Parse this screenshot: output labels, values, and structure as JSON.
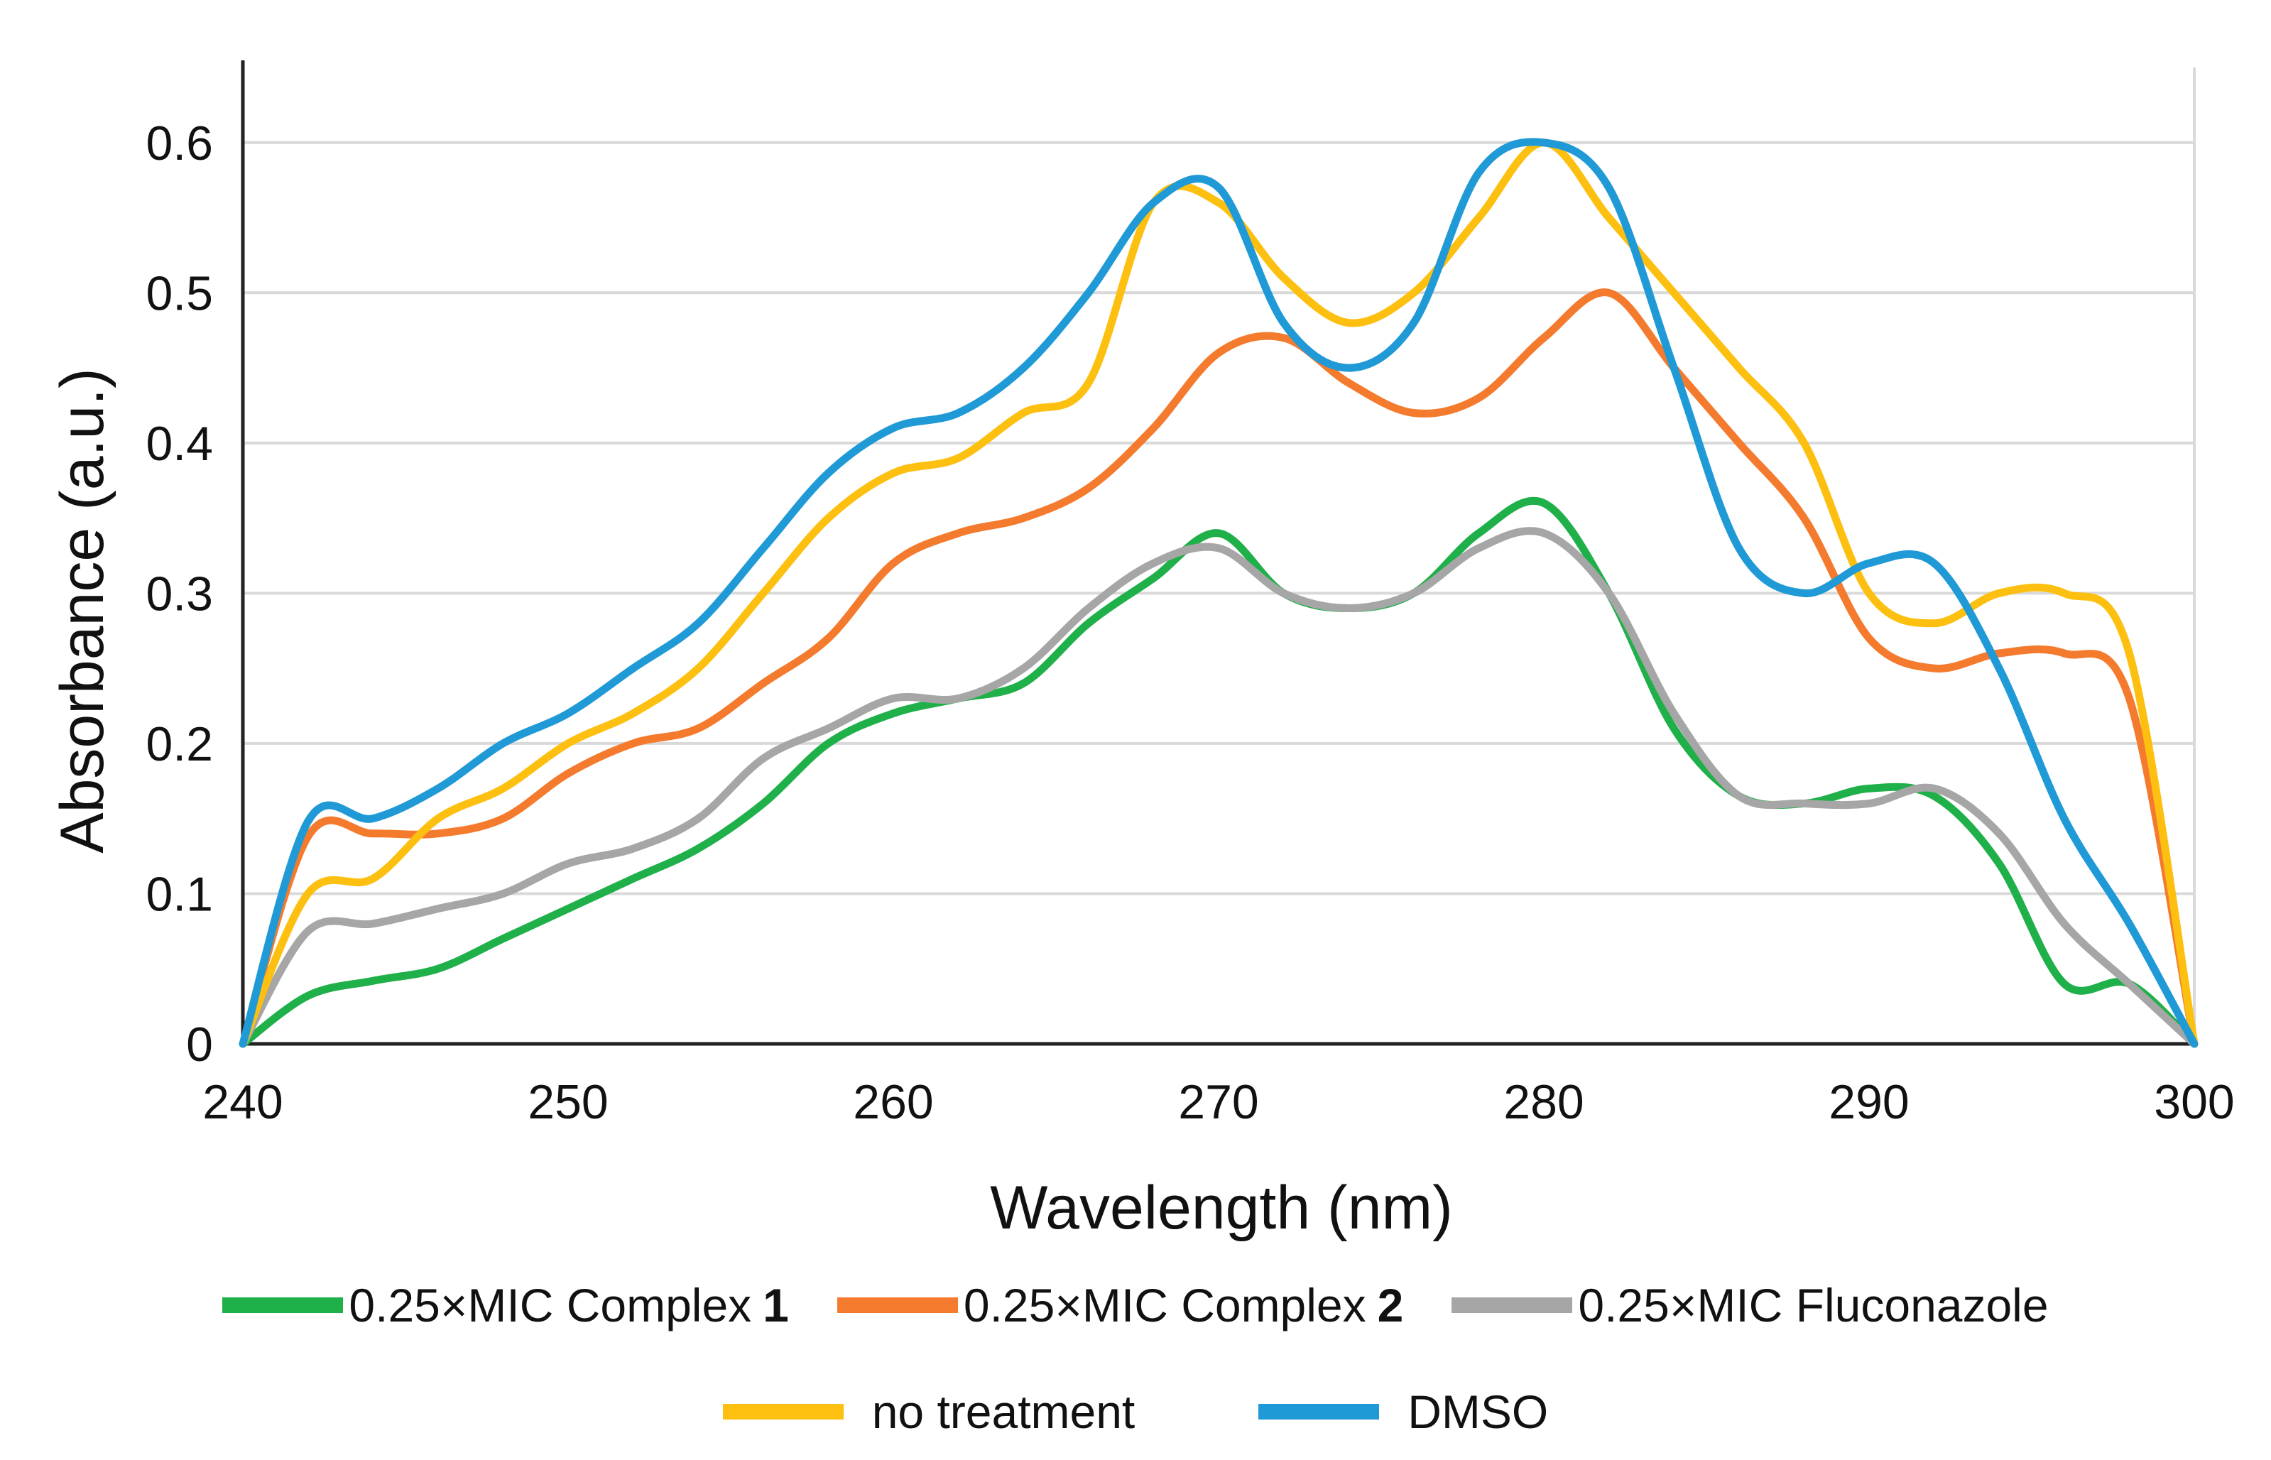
{
  "chart_data": {
    "type": "line",
    "title": "",
    "xlabel": "Wavelength (nm)",
    "ylabel": "Absorbance  (a.u.)",
    "xlim": [
      240,
      300
    ],
    "ylim": [
      0,
      0.65
    ],
    "xticks": [
      240,
      250,
      260,
      270,
      280,
      290,
      300
    ],
    "yticks": [
      0,
      0.1,
      0.2,
      0.3,
      0.4,
      0.5,
      0.6
    ],
    "ytick_labels": [
      "0",
      "0.1",
      "0.2",
      "0.3",
      "0.4",
      "0.5",
      "0.6"
    ],
    "grid": true,
    "legend_position": "bottom",
    "series": [
      {
        "name": "0.25×MIC Complex 1",
        "label_text": "0.25×MIC Complex",
        "label_num": "1",
        "color": "#1fb04a",
        "x": [
          240,
          242,
          244,
          246,
          248,
          250,
          252,
          254,
          256,
          258,
          260,
          262,
          264,
          266,
          268,
          270,
          272,
          274,
          276,
          278,
          280,
          282,
          284,
          286,
          288,
          290,
          292,
          294,
          296,
          298,
          300
        ],
        "y": [
          0,
          0.032,
          0.042,
          0.05,
          0.07,
          0.09,
          0.11,
          0.13,
          0.16,
          0.2,
          0.22,
          0.23,
          0.24,
          0.28,
          0.31,
          0.34,
          0.3,
          0.29,
          0.3,
          0.34,
          0.36,
          0.3,
          0.21,
          0.165,
          0.16,
          0.17,
          0.165,
          0.12,
          0.04,
          0.04,
          0
        ]
      },
      {
        "name": "0.25×MIC Complex 2",
        "label_text": "0.25×MIC Complex",
        "label_num": "2",
        "color": "#f47b2e",
        "x": [
          240,
          242,
          244,
          246,
          248,
          250,
          252,
          254,
          256,
          258,
          260,
          262,
          264,
          266,
          268,
          270,
          272,
          274,
          276,
          278,
          280,
          282,
          284,
          286,
          288,
          290,
          292,
          294,
          296,
          298,
          300
        ],
        "y": [
          0,
          0.138,
          0.14,
          0.14,
          0.15,
          0.18,
          0.2,
          0.21,
          0.24,
          0.27,
          0.32,
          0.34,
          0.35,
          0.37,
          0.41,
          0.46,
          0.47,
          0.44,
          0.42,
          0.43,
          0.47,
          0.5,
          0.45,
          0.4,
          0.35,
          0.27,
          0.25,
          0.26,
          0.26,
          0.23,
          0
        ]
      },
      {
        "name": "0.25×MIC Fluconazole",
        "label_text": "0.25×MIC Fluconazole",
        "label_num": "",
        "color": "#a6a6a6",
        "x": [
          240,
          242,
          244,
          246,
          248,
          250,
          252,
          254,
          256,
          258,
          260,
          262,
          264,
          266,
          268,
          270,
          272,
          274,
          276,
          278,
          280,
          282,
          284,
          286,
          288,
          290,
          292,
          294,
          296,
          298,
          300
        ],
        "y": [
          0,
          0.075,
          0.08,
          0.09,
          0.1,
          0.12,
          0.13,
          0.15,
          0.19,
          0.21,
          0.23,
          0.23,
          0.25,
          0.29,
          0.32,
          0.33,
          0.3,
          0.29,
          0.3,
          0.33,
          0.34,
          0.3,
          0.22,
          0.165,
          0.16,
          0.16,
          0.17,
          0.14,
          0.08,
          0.04,
          0
        ]
      },
      {
        "name": "no treatment",
        "label_text": "no treatment",
        "label_num": "",
        "color": "#fdc010",
        "x": [
          240,
          242,
          244,
          246,
          248,
          250,
          252,
          254,
          256,
          258,
          260,
          262,
          264,
          266,
          268,
          270,
          272,
          274,
          276,
          278,
          280,
          282,
          284,
          286,
          288,
          290,
          292,
          294,
          296,
          298,
          300
        ],
        "y": [
          0,
          0.1,
          0.11,
          0.15,
          0.17,
          0.2,
          0.22,
          0.25,
          0.3,
          0.35,
          0.38,
          0.39,
          0.42,
          0.44,
          0.56,
          0.56,
          0.51,
          0.48,
          0.5,
          0.55,
          0.6,
          0.55,
          0.5,
          0.45,
          0.4,
          0.3,
          0.28,
          0.3,
          0.3,
          0.26,
          0
        ]
      },
      {
        "name": "DMSO",
        "label_text": "DMSO",
        "label_num": "",
        "color": "#1f9ad6",
        "x": [
          240,
          242,
          244,
          246,
          248,
          250,
          252,
          254,
          256,
          258,
          260,
          262,
          264,
          266,
          268,
          270,
          272,
          274,
          276,
          278,
          280,
          282,
          284,
          286,
          288,
          290,
          292,
          294,
          296,
          298,
          300
        ],
        "y": [
          0,
          0.148,
          0.15,
          0.17,
          0.2,
          0.22,
          0.25,
          0.28,
          0.33,
          0.38,
          0.41,
          0.42,
          0.45,
          0.5,
          0.56,
          0.57,
          0.48,
          0.45,
          0.48,
          0.58,
          0.6,
          0.57,
          0.45,
          0.33,
          0.3,
          0.32,
          0.32,
          0.25,
          0.15,
          0.08,
          0
        ]
      }
    ]
  }
}
